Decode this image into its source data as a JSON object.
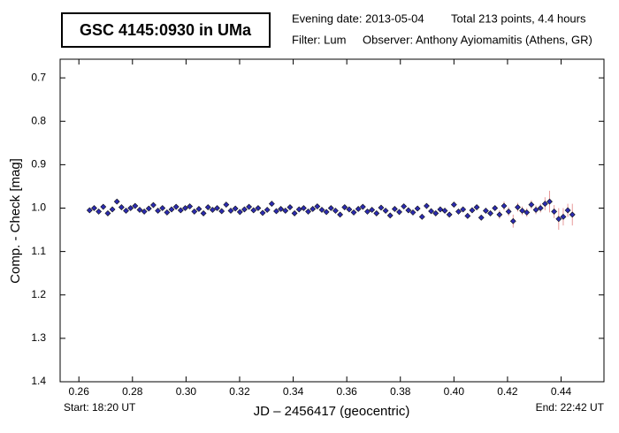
{
  "chart_data": {
    "type": "scatter",
    "title": "GSC 4145:0930 in UMa",
    "evening_date": "Evening date: 2013-05-04",
    "total": "Total 213 points, 4.4 hours",
    "filter": "Filter: Lum",
    "observer": "Observer: Anthony Ayiomamitis (Athens, GR)",
    "start": "Start: 18:20 UT",
    "end": "End: 22:42 UT",
    "x_label": "JD – 2456417  (geocentric)",
    "y_label": "Comp. - Check [mag]",
    "xlim": [
      0.253,
      0.456
    ],
    "ylim": [
      1.4,
      0.657
    ],
    "xticks": [
      0.26,
      0.28,
      {
        "value": 0.3,
        "label": "0.30"
      },
      0.32,
      0.34,
      0.36,
      0.38,
      {
        "value": 0.4,
        "label": "0.40"
      },
      0.42,
      0.44
    ],
    "yticks": [
      0.7,
      0.8,
      0.9,
      {
        "value": 1,
        "label": "1.0"
      },
      1.1,
      1.2,
      1.3,
      1.4
    ],
    "marker_color": "#2b2bb0",
    "error_color": "#e89a9a",
    "x": [
      0.264,
      0.2657,
      0.2674,
      0.2691,
      0.2708,
      0.2725,
      0.2742,
      0.2759,
      0.2776,
      0.2793,
      0.281,
      0.2827,
      0.2844,
      0.2861,
      0.2878,
      0.2895,
      0.2912,
      0.2929,
      0.2946,
      0.2963,
      0.298,
      0.2997,
      0.3014,
      0.3031,
      0.3048,
      0.3065,
      0.3082,
      0.3099,
      0.3116,
      0.3133,
      0.315,
      0.3167,
      0.3184,
      0.3201,
      0.3218,
      0.3235,
      0.3252,
      0.3269,
      0.3286,
      0.3303,
      0.332,
      0.3337,
      0.3354,
      0.3371,
      0.3388,
      0.3405,
      0.3422,
      0.3439,
      0.3456,
      0.3473,
      0.349,
      0.3507,
      0.3524,
      0.3541,
      0.3558,
      0.3575,
      0.3592,
      0.3609,
      0.3626,
      0.3643,
      0.366,
      0.3677,
      0.3694,
      0.3711,
      0.3728,
      0.3745,
      0.3762,
      0.3779,
      0.3796,
      0.3813,
      0.383,
      0.3847,
      0.3864,
      0.3881,
      0.3898,
      0.3915,
      0.3932,
      0.3949,
      0.3966,
      0.3983,
      0.4,
      0.4017,
      0.4034,
      0.4051,
      0.4068,
      0.4085,
      0.4102,
      0.4119,
      0.4136,
      0.4153,
      0.417,
      0.4187,
      0.4204,
      0.4221,
      0.4238,
      0.4255,
      0.4272,
      0.4289,
      0.4306,
      0.4323,
      0.434,
      0.4357,
      0.4374,
      0.4391,
      0.4408,
      0.4425,
      0.4442
    ],
    "values": [
      1.005,
      1.0,
      1.008,
      0.997,
      1.012,
      1.003,
      0.985,
      0.998,
      1.006,
      1.0,
      0.995,
      1.004,
      1.008,
      1.001,
      0.993,
      1.006,
      1.0,
      1.01,
      1.003,
      0.997,
      1.005,
      1.0,
      0.996,
      1.008,
      1.002,
      1.012,
      0.998,
      1.004,
      1.0,
      1.007,
      0.992,
      1.006,
      1.001,
      1.009,
      1.003,
      0.997,
      1.005,
      1.0,
      1.011,
      1.004,
      0.99,
      1.007,
      1.002,
      1.006,
      0.998,
      1.012,
      1.003,
      1.0,
      1.008,
      1.002,
      0.996,
      1.004,
      1.009,
      1.0,
      1.006,
      1.015,
      0.998,
      1.003,
      1.01,
      1.002,
      0.997,
      1.008,
      1.004,
      1.012,
      0.999,
      1.006,
      1.017,
      1.002,
      1.009,
      0.996,
      1.005,
      1.01,
      1.001,
      1.02,
      0.995,
      1.007,
      1.012,
      1.003,
      1.006,
      1.015,
      0.992,
      1.008,
      1.003,
      1.018,
      1.005,
      0.998,
      1.022,
      1.006,
      1.012,
      1.0,
      1.015,
      0.995,
      1.008,
      1.03,
      0.998,
      1.006,
      1.01,
      0.992,
      1.004,
      1.0,
      0.99,
      0.985,
      1.008,
      1.025,
      1.02,
      1.005,
      1.015
    ],
    "errors": [
      0.003,
      0.003,
      0.003,
      0.003,
      0.003,
      0.003,
      0.003,
      0.003,
      0.003,
      0.003,
      0.003,
      0.003,
      0.003,
      0.003,
      0.003,
      0.003,
      0.003,
      0.003,
      0.003,
      0.003,
      0.003,
      0.003,
      0.003,
      0.003,
      0.003,
      0.003,
      0.003,
      0.003,
      0.003,
      0.003,
      0.003,
      0.003,
      0.003,
      0.003,
      0.003,
      0.003,
      0.003,
      0.003,
      0.003,
      0.003,
      0.004,
      0.004,
      0.004,
      0.004,
      0.004,
      0.004,
      0.004,
      0.004,
      0.004,
      0.004,
      0.004,
      0.004,
      0.004,
      0.004,
      0.004,
      0.004,
      0.004,
      0.004,
      0.004,
      0.004,
      0.004,
      0.004,
      0.004,
      0.004,
      0.004,
      0.004,
      0.004,
      0.004,
      0.004,
      0.004,
      0.006,
      0.006,
      0.006,
      0.006,
      0.006,
      0.006,
      0.006,
      0.006,
      0.006,
      0.006,
      0.006,
      0.006,
      0.006,
      0.006,
      0.006,
      0.006,
      0.006,
      0.006,
      0.006,
      0.006,
      0.01,
      0.01,
      0.01,
      0.015,
      0.01,
      0.01,
      0.01,
      0.01,
      0.01,
      0.01,
      0.015,
      0.025,
      0.015,
      0.025,
      0.02,
      0.015,
      0.025
    ]
  }
}
